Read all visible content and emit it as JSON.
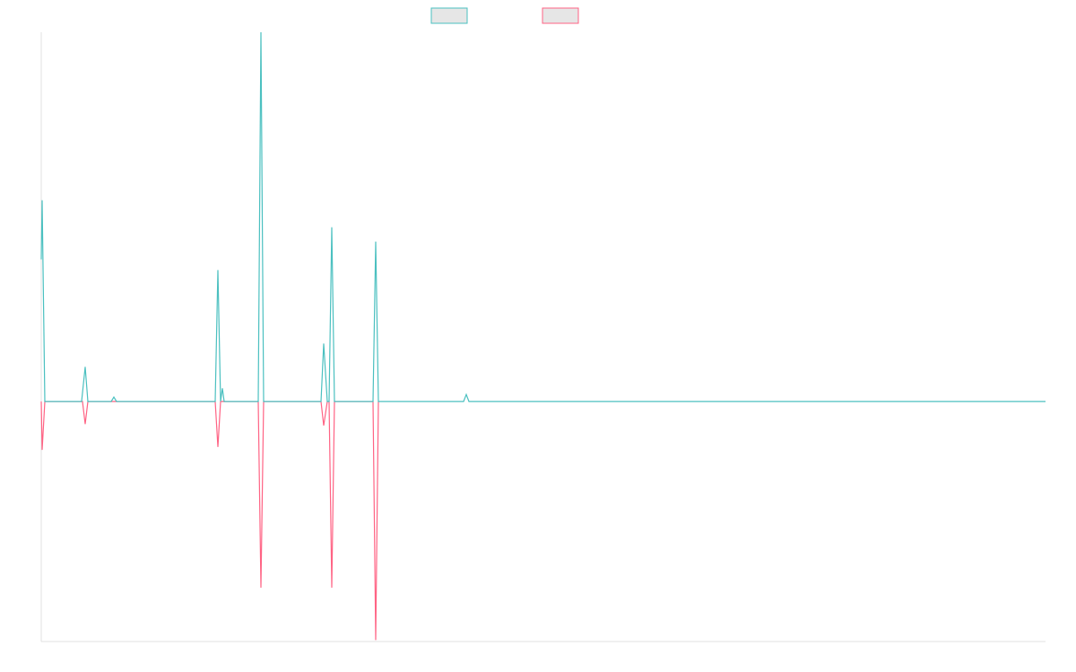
{
  "chart_data": {
    "type": "line",
    "xlim": [
      0,
      1120
    ],
    "ylim": [
      -0.65,
      1
    ],
    "series": [
      {
        "color": "#4bc0c0",
        "legend_fill": "#e6e6e6",
        "x": [
          0,
          1,
          4,
          45,
          49,
          52,
          78,
          81,
          84,
          194,
          197,
          200,
          202,
          204,
          242,
          245,
          248,
          312,
          315,
          319,
          321,
          324,
          327,
          370,
          373,
          376,
          471,
          474,
          477,
          1120
        ],
        "values": [
          0.385,
          0.545,
          0,
          0,
          0.094,
          0,
          0,
          0.012,
          0,
          0,
          0.356,
          0,
          0.036,
          0,
          0,
          1.0,
          0,
          0,
          0.157,
          0,
          0,
          0.472,
          0,
          0,
          0.433,
          0,
          0,
          0.019,
          0,
          0
        ]
      },
      {
        "color": "#ff6384",
        "legend_fill": "#e6e6e6",
        "x": [
          0,
          1,
          4,
          46,
          49,
          52,
          194,
          197,
          200,
          242,
          245,
          248,
          312,
          315,
          319,
          321,
          324,
          327,
          370,
          373,
          376
        ],
        "values": [
          0,
          -0.131,
          0,
          0,
          -0.061,
          0,
          0,
          -0.123,
          0,
          0,
          -0.504,
          0,
          0,
          -0.065,
          0,
          0,
          -0.504,
          0,
          0,
          -0.646,
          0
        ]
      }
    ]
  }
}
